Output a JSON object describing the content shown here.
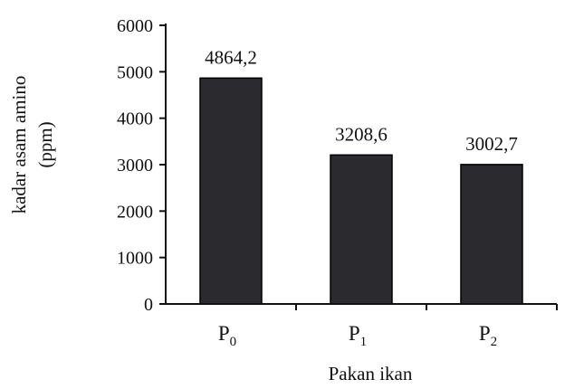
{
  "chart_data": {
    "type": "bar",
    "categories": [
      {
        "base": "P",
        "sub": "0"
      },
      {
        "base": "P",
        "sub": "1"
      },
      {
        "base": "P",
        "sub": "2"
      }
    ],
    "values": [
      4864.2,
      3208.6,
      3002.7
    ],
    "value_labels": [
      "4864,2",
      "3208,6",
      "3002,7"
    ],
    "xlabel": "Pakan ikan",
    "ylabel_lines": [
      "kadar asam amino",
      "(ppm)"
    ],
    "ylim": [
      0,
      6000
    ],
    "yticks": [
      0,
      1000,
      2000,
      3000,
      4000,
      5000,
      6000
    ],
    "grid": false,
    "bar_color": "#2b2b2f",
    "axis_color": "#111111"
  }
}
